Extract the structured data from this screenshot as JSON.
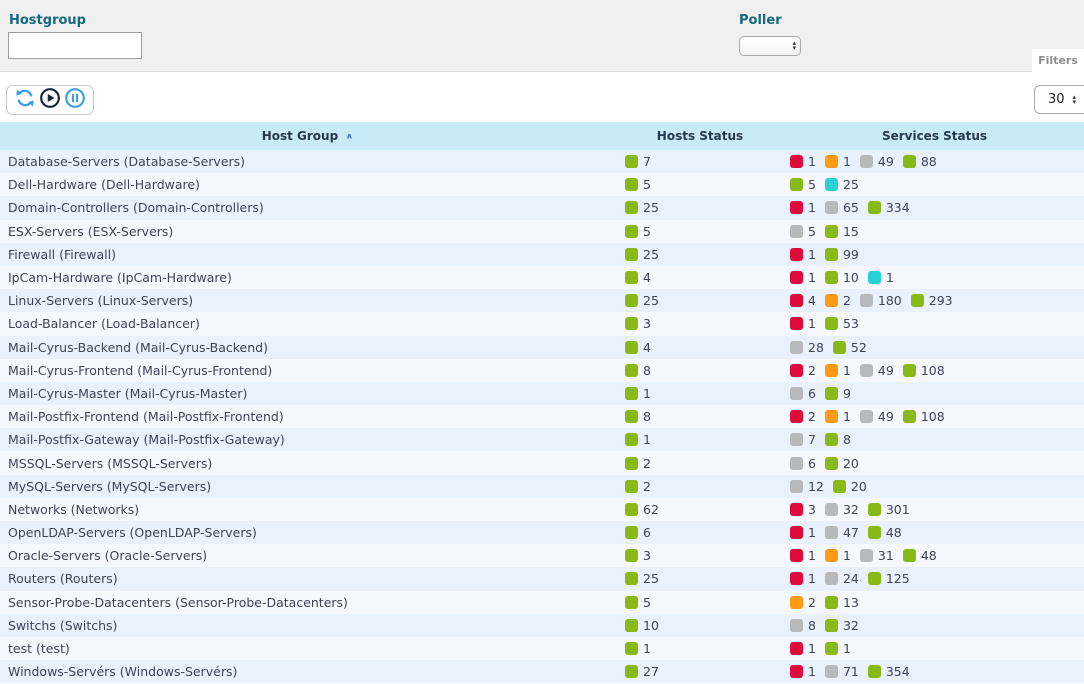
{
  "filters": {
    "hostgroup_label": "Hostgroup",
    "hostgroup_value": "",
    "poller_label": "Poller",
    "poller_value": "",
    "filters_tab": "Filters"
  },
  "toolbar": {
    "page_size": "30"
  },
  "colors": {
    "ok": "#88b917",
    "warning": "#ff9a13",
    "critical": "#e00b3d",
    "unknown": "#b7babd",
    "pending": "#2ad1d4",
    "accent": "#17697e"
  },
  "table": {
    "columns": [
      "Host Group",
      "Hosts Status",
      "Services Status"
    ],
    "sort_indicator": "∧",
    "rows": [
      {
        "name": "Database-Servers (Database-Servers)",
        "hosts": [
          [
            "ok",
            "7"
          ]
        ],
        "services": [
          [
            "critical",
            "1"
          ],
          [
            "warning",
            "1"
          ],
          [
            "unknown",
            "49"
          ],
          [
            "ok",
            "88"
          ]
        ]
      },
      {
        "name": "Dell-Hardware (Dell-Hardware)",
        "hosts": [
          [
            "ok",
            "5"
          ]
        ],
        "services": [
          [
            "ok",
            "5"
          ],
          [
            "pending",
            "25"
          ]
        ]
      },
      {
        "name": "Domain-Controllers (Domain-Controllers)",
        "hosts": [
          [
            "ok",
            "25"
          ]
        ],
        "services": [
          [
            "critical",
            "1"
          ],
          [
            "unknown",
            "65"
          ],
          [
            "ok",
            "334"
          ]
        ]
      },
      {
        "name": "ESX-Servers (ESX-Servers)",
        "hosts": [
          [
            "ok",
            "5"
          ]
        ],
        "services": [
          [
            "unknown",
            "5"
          ],
          [
            "ok",
            "15"
          ]
        ]
      },
      {
        "name": "Firewall (Firewall)",
        "hosts": [
          [
            "ok",
            "25"
          ]
        ],
        "services": [
          [
            "critical",
            "1"
          ],
          [
            "ok",
            "99"
          ]
        ]
      },
      {
        "name": "IpCam-Hardware (IpCam-Hardware)",
        "hosts": [
          [
            "ok",
            "4"
          ]
        ],
        "services": [
          [
            "critical",
            "1"
          ],
          [
            "ok",
            "10"
          ],
          [
            "pending",
            "1"
          ]
        ]
      },
      {
        "name": "Linux-Servers (Linux-Servers)",
        "hosts": [
          [
            "ok",
            "25"
          ]
        ],
        "services": [
          [
            "critical",
            "4"
          ],
          [
            "warning",
            "2"
          ],
          [
            "unknown",
            "180"
          ],
          [
            "ok",
            "293"
          ]
        ]
      },
      {
        "name": "Load-Balancer (Load-Balancer)",
        "hosts": [
          [
            "ok",
            "3"
          ]
        ],
        "services": [
          [
            "critical",
            "1"
          ],
          [
            "ok",
            "53"
          ]
        ]
      },
      {
        "name": "Mail-Cyrus-Backend (Mail-Cyrus-Backend)",
        "hosts": [
          [
            "ok",
            "4"
          ]
        ],
        "services": [
          [
            "unknown",
            "28"
          ],
          [
            "ok",
            "52"
          ]
        ]
      },
      {
        "name": "Mail-Cyrus-Frontend (Mail-Cyrus-Frontend)",
        "hosts": [
          [
            "ok",
            "8"
          ]
        ],
        "services": [
          [
            "critical",
            "2"
          ],
          [
            "warning",
            "1"
          ],
          [
            "unknown",
            "49"
          ],
          [
            "ok",
            "108"
          ]
        ]
      },
      {
        "name": "Mail-Cyrus-Master (Mail-Cyrus-Master)",
        "hosts": [
          [
            "ok",
            "1"
          ]
        ],
        "services": [
          [
            "unknown",
            "6"
          ],
          [
            "ok",
            "9"
          ]
        ]
      },
      {
        "name": "Mail-Postfix-Frontend (Mail-Postfix-Frontend)",
        "hosts": [
          [
            "ok",
            "8"
          ]
        ],
        "services": [
          [
            "critical",
            "2"
          ],
          [
            "warning",
            "1"
          ],
          [
            "unknown",
            "49"
          ],
          [
            "ok",
            "108"
          ]
        ]
      },
      {
        "name": "Mail-Postfix-Gateway (Mail-Postfix-Gateway)",
        "hosts": [
          [
            "ok",
            "1"
          ]
        ],
        "services": [
          [
            "unknown",
            "7"
          ],
          [
            "ok",
            "8"
          ]
        ]
      },
      {
        "name": "MSSQL-Servers (MSSQL-Servers)",
        "hosts": [
          [
            "ok",
            "2"
          ]
        ],
        "services": [
          [
            "unknown",
            "6"
          ],
          [
            "ok",
            "20"
          ]
        ]
      },
      {
        "name": "MySQL-Servers (MySQL-Servers)",
        "hosts": [
          [
            "ok",
            "2"
          ]
        ],
        "services": [
          [
            "unknown",
            "12"
          ],
          [
            "ok",
            "20"
          ]
        ]
      },
      {
        "name": "Networks (Networks)",
        "hosts": [
          [
            "ok",
            "62"
          ]
        ],
        "services": [
          [
            "critical",
            "3"
          ],
          [
            "unknown",
            "32"
          ],
          [
            "ok",
            "301"
          ]
        ]
      },
      {
        "name": "OpenLDAP-Servers (OpenLDAP-Servers)",
        "hosts": [
          [
            "ok",
            "6"
          ]
        ],
        "services": [
          [
            "critical",
            "1"
          ],
          [
            "unknown",
            "47"
          ],
          [
            "ok",
            "48"
          ]
        ]
      },
      {
        "name": "Oracle-Servers (Oracle-Servers)",
        "hosts": [
          [
            "ok",
            "3"
          ]
        ],
        "services": [
          [
            "critical",
            "1"
          ],
          [
            "warning",
            "1"
          ],
          [
            "unknown",
            "31"
          ],
          [
            "ok",
            "48"
          ]
        ]
      },
      {
        "name": "Routers (Routers)",
        "hosts": [
          [
            "ok",
            "25"
          ]
        ],
        "services": [
          [
            "critical",
            "1"
          ],
          [
            "unknown",
            "24"
          ],
          [
            "ok",
            "125"
          ]
        ]
      },
      {
        "name": "Sensor-Probe-Datacenters (Sensor-Probe-Datacenters)",
        "hosts": [
          [
            "ok",
            "5"
          ]
        ],
        "services": [
          [
            "warning",
            "2"
          ],
          [
            "ok",
            "13"
          ]
        ]
      },
      {
        "name": "Switchs (Switchs)",
        "hosts": [
          [
            "ok",
            "10"
          ]
        ],
        "services": [
          [
            "unknown",
            "8"
          ],
          [
            "ok",
            "32"
          ]
        ]
      },
      {
        "name": "test (test)",
        "hosts": [
          [
            "ok",
            "1"
          ]
        ],
        "services": [
          [
            "critical",
            "1"
          ],
          [
            "ok",
            "1"
          ]
        ]
      },
      {
        "name": "Windows-Servérs (Windows-Servérs)",
        "hosts": [
          [
            "ok",
            "27"
          ]
        ],
        "services": [
          [
            "critical",
            "1"
          ],
          [
            "unknown",
            "71"
          ],
          [
            "ok",
            "354"
          ]
        ]
      }
    ]
  }
}
